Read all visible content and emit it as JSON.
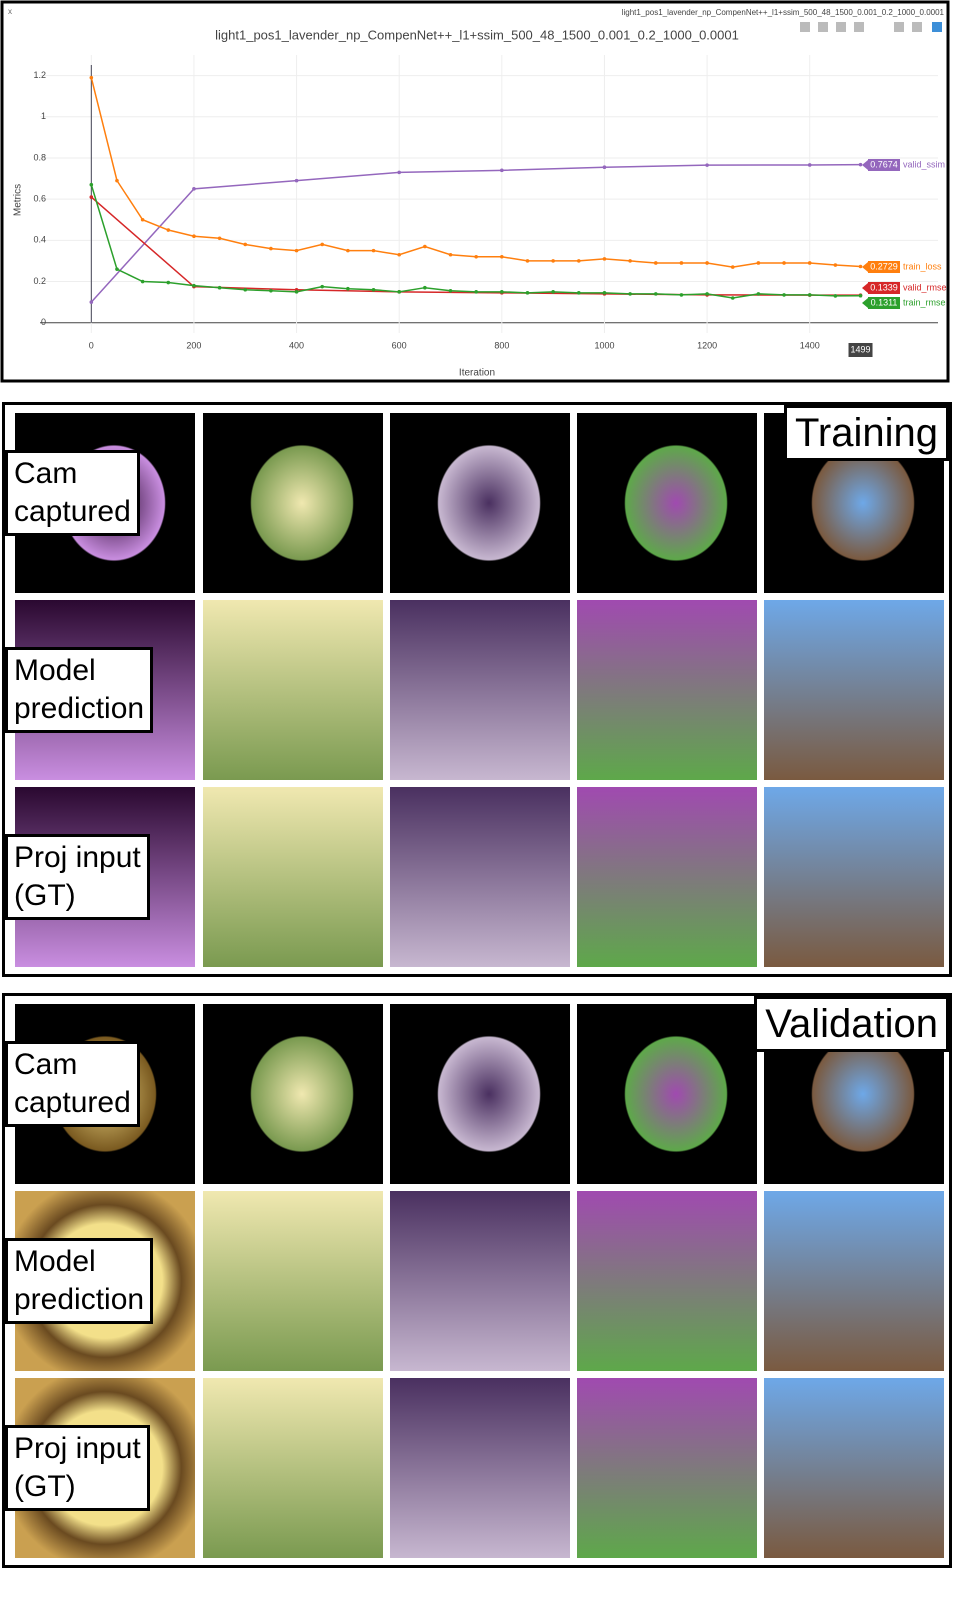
{
  "window_title": "light1_pos1_lavender_np_CompenNet++_l1+ssim_500_48_1500_0.001_0.2_1000_0.0001",
  "chart_data": {
    "type": "line",
    "title": "light1_pos1_lavender_np_CompenNet++_l1+ssim_500_48_1500_0.001_0.2_1000_0.0001",
    "x_label": "Iteration",
    "y_label": "Metrics",
    "xlim": [
      -100,
      1650
    ],
    "ylim": [
      -0.05,
      1.3
    ],
    "xticks": [
      0,
      200,
      400,
      600,
      800,
      1000,
      1200,
      1400
    ],
    "yticks": [
      0,
      0.2,
      0.4,
      0.6,
      0.8,
      1,
      1.2
    ],
    "hover_x": 1499,
    "series": [
      {
        "name": "valid_ssim",
        "color": "#9467bd",
        "x": [
          0,
          200,
          400,
          600,
          800,
          1000,
          1200,
          1400,
          1499
        ],
        "values": [
          0.1,
          0.65,
          0.69,
          0.73,
          0.74,
          0.755,
          0.765,
          0.766,
          0.7674
        ]
      },
      {
        "name": "train_loss",
        "color": "#ff7f0e",
        "x": [
          0,
          50,
          100,
          150,
          200,
          250,
          300,
          350,
          400,
          450,
          500,
          550,
          600,
          650,
          700,
          750,
          800,
          850,
          900,
          950,
          1000,
          1050,
          1100,
          1150,
          1200,
          1250,
          1300,
          1350,
          1400,
          1450,
          1499
        ],
        "values": [
          1.19,
          0.69,
          0.5,
          0.45,
          0.42,
          0.41,
          0.38,
          0.36,
          0.35,
          0.38,
          0.35,
          0.35,
          0.33,
          0.37,
          0.33,
          0.32,
          0.32,
          0.3,
          0.3,
          0.3,
          0.31,
          0.3,
          0.29,
          0.29,
          0.29,
          0.27,
          0.29,
          0.29,
          0.29,
          0.28,
          0.2729
        ]
      },
      {
        "name": "valid_rmse",
        "color": "#d62728",
        "x": [
          0,
          200,
          400,
          600,
          800,
          1000,
          1200,
          1400,
          1499
        ],
        "values": [
          0.61,
          0.175,
          0.16,
          0.15,
          0.145,
          0.14,
          0.135,
          0.134,
          0.1339
        ]
      },
      {
        "name": "train_rmse",
        "color": "#2ca02c",
        "x": [
          0,
          50,
          100,
          150,
          200,
          250,
          300,
          350,
          400,
          450,
          500,
          550,
          600,
          650,
          700,
          750,
          800,
          850,
          900,
          950,
          1000,
          1050,
          1100,
          1150,
          1200,
          1250,
          1300,
          1350,
          1400,
          1450,
          1499
        ],
        "values": [
          0.67,
          0.26,
          0.2,
          0.195,
          0.18,
          0.17,
          0.16,
          0.155,
          0.15,
          0.175,
          0.165,
          0.16,
          0.15,
          0.17,
          0.155,
          0.15,
          0.15,
          0.145,
          0.15,
          0.145,
          0.145,
          0.14,
          0.14,
          0.135,
          0.14,
          0.12,
          0.14,
          0.135,
          0.135,
          0.13,
          0.1311
        ]
      }
    ]
  },
  "panels": [
    {
      "title": "Training",
      "rows": [
        [
          "Cam",
          "captured"
        ],
        [
          "Model",
          "prediction"
        ],
        [
          "Proj input",
          "(GT)"
        ]
      ]
    },
    {
      "title": "Validation",
      "rows": [
        [
          "Cam",
          "captured"
        ],
        [
          "Model",
          "prediction"
        ],
        [
          "Proj input",
          "(GT)"
        ]
      ]
    }
  ]
}
